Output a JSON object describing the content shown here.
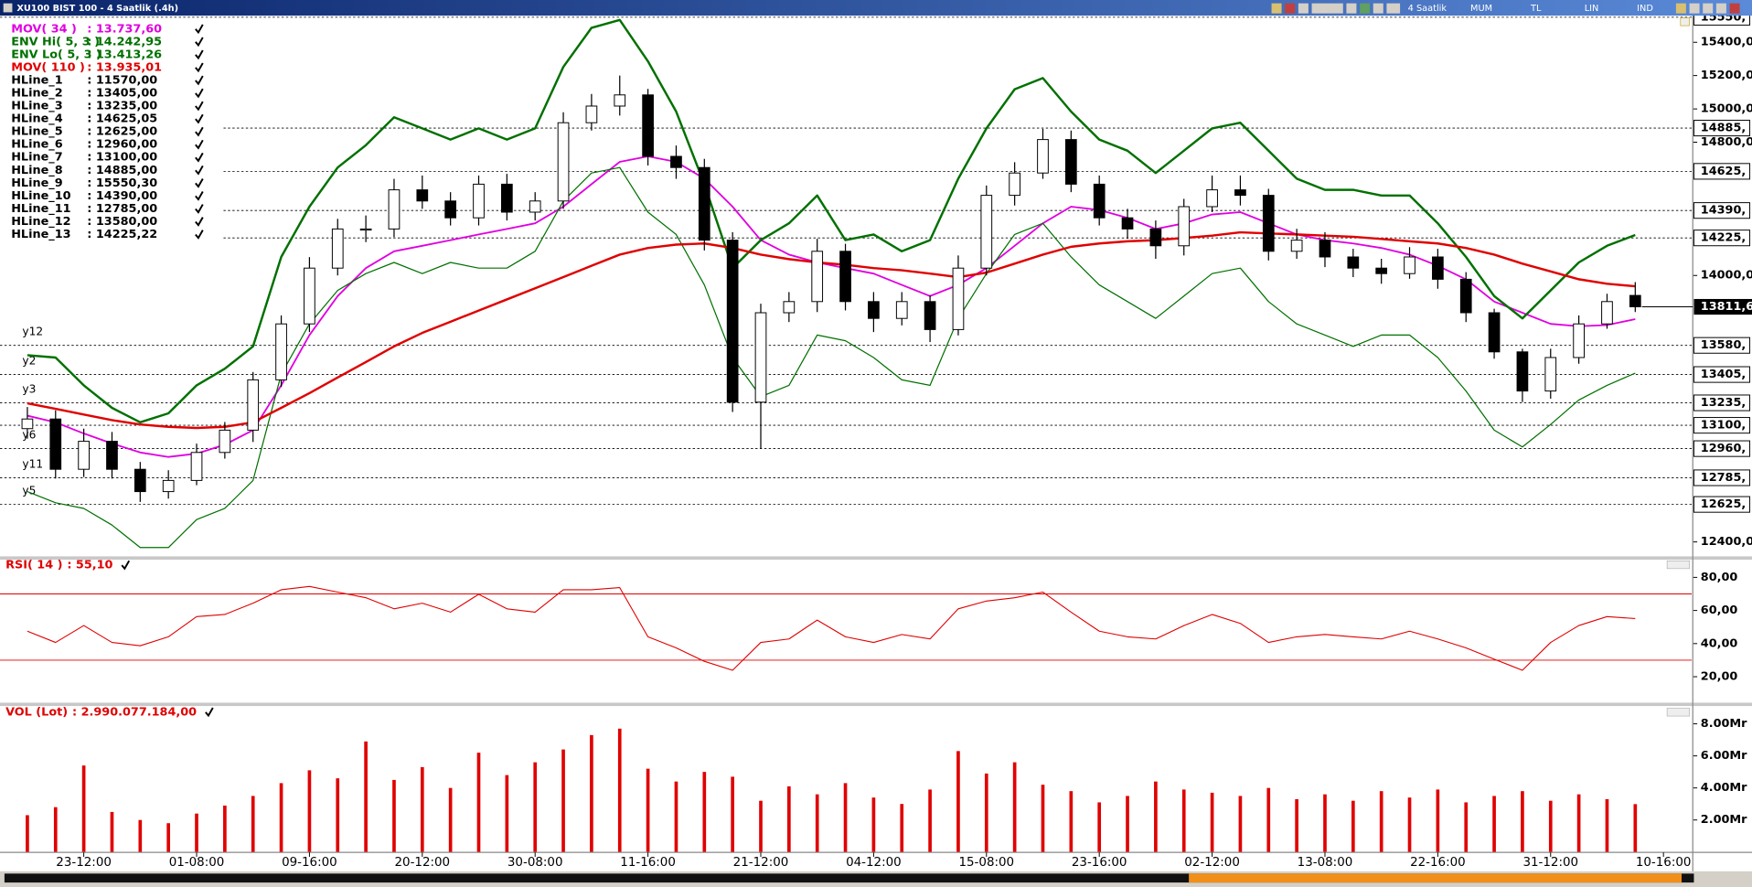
{
  "header": {
    "title": "XU100 BIST 100 - 4 Saatlik (.4h)",
    "toolbar": [
      "4 Saatlik",
      "MUM",
      "TL",
      "LIN",
      "IND"
    ]
  },
  "chart_data": [
    {
      "type": "candlestick",
      "x": [
        0,
        1,
        2,
        3,
        4,
        5,
        6,
        7,
        8,
        9,
        10,
        11,
        12,
        13,
        14,
        15,
        16,
        17,
        18,
        19,
        20,
        21,
        22,
        23,
        24,
        25,
        26,
        27,
        28,
        29,
        30,
        31,
        32,
        33,
        34,
        35,
        36,
        37,
        38,
        39,
        40,
        41,
        42,
        43,
        44,
        45,
        46,
        47,
        48,
        49,
        50,
        51,
        52,
        53,
        54,
        55,
        56,
        57
      ],
      "open": [
        13080,
        13138,
        12836,
        13004,
        12836,
        12702,
        12769,
        12937,
        13071,
        13373,
        13709,
        14044,
        14279,
        14279,
        14514,
        14447,
        14346,
        14548,
        14380,
        14447,
        14917,
        15017,
        15084,
        14715,
        14648,
        14212,
        13239,
        13776,
        13843,
        14145,
        13843,
        13742,
        13843,
        13675,
        14044,
        14481,
        14615,
        14816,
        14548,
        14346,
        14279,
        14178,
        14413,
        14514,
        14481,
        14145,
        14212,
        14111,
        14044,
        14011,
        14111,
        13977,
        13776,
        13541,
        13306,
        13507,
        13709,
        13880
      ],
      "high": [
        13210,
        13190,
        13080,
        13060,
        12880,
        12830,
        12990,
        13120,
        13420,
        13760,
        14110,
        14340,
        14360,
        14580,
        14600,
        14500,
        14600,
        14610,
        14500,
        14980,
        15090,
        15200,
        15120,
        14780,
        14700,
        14260,
        13830,
        13900,
        14220,
        14190,
        13900,
        13900,
        13880,
        14120,
        14540,
        14680,
        14880,
        14870,
        14600,
        14400,
        14330,
        14460,
        14600,
        14600,
        14520,
        14280,
        14260,
        14160,
        14100,
        14170,
        14160,
        14020,
        13800,
        13560,
        13560,
        13760,
        13890,
        13960
      ],
      "low": [
        13020,
        12780,
        12790,
        12780,
        12640,
        12660,
        12740,
        12900,
        13000,
        13330,
        13660,
        14000,
        14200,
        14230,
        14400,
        14300,
        14300,
        14330,
        14330,
        14400,
        14870,
        14960,
        14660,
        14580,
        14150,
        13180,
        12960,
        13720,
        13780,
        13790,
        13660,
        13700,
        13600,
        13640,
        14000,
        14420,
        14580,
        14500,
        14300,
        14220,
        14100,
        14120,
        14380,
        14420,
        14090,
        14100,
        14050,
        13990,
        13950,
        13980,
        13920,
        13720,
        13500,
        13240,
        13260,
        13470,
        13680,
        13780
      ],
      "close": [
        13138,
        12836,
        13004,
        12836,
        12702,
        12769,
        12937,
        13071,
        13373,
        13709,
        14044,
        14279,
        14279,
        14514,
        14447,
        14346,
        14548,
        14380,
        14447,
        14917,
        15017,
        15084,
        14715,
        14648,
        14212,
        13239,
        13776,
        13843,
        14145,
        13843,
        13742,
        13843,
        13675,
        14044,
        14481,
        14615,
        14816,
        14548,
        14346,
        14279,
        14178,
        14413,
        14514,
        14481,
        14145,
        14212,
        14111,
        14044,
        14011,
        14111,
        13977,
        13776,
        13541,
        13306,
        13507,
        13709,
        13843,
        13811.6
      ],
      "up_color": "#ffffff",
      "down_color": "#000000",
      "series": [
        {
          "name": "MOV( 34 )",
          "color": "#e000e0",
          "legend": {
            "value": 13737.6,
            "label": ": 13.737,60"
          },
          "values": [
            13158,
            13118,
            13051,
            12991,
            12937,
            12910,
            12930,
            12984,
            13071,
            13340,
            13642,
            13876,
            14044,
            14145,
            14178,
            14212,
            14246,
            14279,
            14313,
            14413,
            14548,
            14682,
            14715,
            14682,
            14581,
            14413,
            14212,
            14125,
            14078,
            14044,
            14011,
            13943,
            13876,
            13943,
            14044,
            14178,
            14313,
            14413,
            14393,
            14346,
            14279,
            14313,
            14366,
            14380,
            14313,
            14246,
            14212,
            14192,
            14165,
            14125,
            14058,
            13977,
            13843,
            13776,
            13709,
            13695,
            13702,
            13737.6
          ]
        },
        {
          "name": "ENV Hi( 5, 3 )",
          "color": "#007000",
          "legend": {
            "value": 14242.95,
            "label": ": 14.242,95"
          },
          "values": [
            13521,
            13507,
            13340,
            13205,
            13118,
            13172,
            13340,
            13440,
            13574,
            14111,
            14413,
            14648,
            14782,
            14950,
            14883,
            14816,
            14883,
            14816,
            14883,
            15252,
            15487,
            15534,
            15286,
            14984,
            14548,
            14044,
            14212,
            14313,
            14480,
            14212,
            14246,
            14145,
            14212,
            14581,
            14883,
            15118,
            15185,
            14984,
            14816,
            14749,
            14615,
            14749,
            14883,
            14917,
            14749,
            14581,
            14514,
            14514,
            14480,
            14480,
            14313,
            14111,
            13876,
            13742,
            13910,
            14078,
            14178,
            14242.95
          ]
        },
        {
          "name": "ENV Lo( 5, 3 )",
          "color": "#007000",
          "legend": {
            "value": 13413.26,
            "label": ": 13.413,26"
          },
          "values": [
            12702,
            12635,
            12601,
            12501,
            12366,
            12366,
            12534,
            12601,
            12769,
            13407,
            13709,
            13910,
            14011,
            14078,
            14011,
            14078,
            14044,
            14044,
            14145,
            14447,
            14615,
            14648,
            14380,
            14246,
            13943,
            13507,
            13272,
            13340,
            13642,
            13608,
            13507,
            13373,
            13340,
            13742,
            14011,
            14246,
            14313,
            14111,
            13943,
            13843,
            13742,
            13876,
            14011,
            14044,
            13843,
            13709,
            13642,
            13574,
            13642,
            13642,
            13507,
            13306,
            13071,
            12970,
            13105,
            13252,
            13340,
            13413.26
          ]
        },
        {
          "name": "MOV( 110 )",
          "color": "#e00000",
          "legend": {
            "value": 13935.01,
            "label": ": 13.935,01"
          },
          "values": [
            13232,
            13199,
            13165,
            13131,
            13105,
            13091,
            13084,
            13091,
            13118,
            13205,
            13293,
            13387,
            13480,
            13574,
            13655,
            13722,
            13789,
            13856,
            13923,
            13990,
            14058,
            14125,
            14165,
            14185,
            14192,
            14165,
            14125,
            14098,
            14078,
            14064,
            14044,
            14031,
            14011,
            13990,
            14017,
            14071,
            14125,
            14172,
            14192,
            14205,
            14212,
            14225,
            14239,
            14259,
            14252,
            14246,
            14239,
            14232,
            14219,
            14205,
            14192,
            14165,
            14125,
            14071,
            14024,
            13977,
            13950,
            13935.01
          ]
        }
      ],
      "hlines": [
        {
          "name": "HLine_1",
          "value": 11570,
          "legend_label": ": 11570,00"
        },
        {
          "name": "HLine_2",
          "value": 13405,
          "legend_label": ": 13405,00",
          "axis_label": "13405,",
          "tag": "y2"
        },
        {
          "name": "HLine_3",
          "value": 13235,
          "legend_label": ": 13235,00",
          "axis_label": "13235,",
          "tag": "y3"
        },
        {
          "name": "HLine_4",
          "value": 14625.05,
          "legend_label": ": 14625,05",
          "axis_label": "14625,"
        },
        {
          "name": "HLine_5",
          "value": 12625,
          "legend_label": ": 12625,00",
          "axis_label": "12625,",
          "tag": "y5"
        },
        {
          "name": "HLine_6",
          "value": 12960,
          "legend_label": ": 12960,00",
          "axis_label": "12960,",
          "tag": "y6"
        },
        {
          "name": "HLine_7",
          "value": 13100,
          "legend_label": ": 13100,00",
          "axis_label": "13100,"
        },
        {
          "name": "HLine_8",
          "value": 14885,
          "legend_label": ": 14885,00",
          "axis_label": "14885,"
        },
        {
          "name": "HLine_9",
          "value": 15550.3,
          "legend_label": ": 15550,30",
          "axis_label": "15550,"
        },
        {
          "name": "HLine_10",
          "value": 14390,
          "legend_label": ": 14390,00",
          "axis_label": "14390,"
        },
        {
          "name": "HLine_11",
          "value": 12785,
          "legend_label": ": 12785,00",
          "axis_label": "12785,",
          "tag": "y11"
        },
        {
          "name": "HLine_12",
          "value": 13580,
          "legend_label": ": 13580,00",
          "axis_label": "13580,",
          "tag": "y12"
        },
        {
          "name": "HLine_13",
          "value": 14225.22,
          "legend_label": ": 14225,22",
          "axis_label": "14225,"
        }
      ],
      "last_price": {
        "value": 13811.6,
        "label": "13811,6"
      },
      "xlim": [
        -0.97,
        59
      ],
      "ylim": [
        12320,
        15560
      ],
      "yticks": [
        {
          "value": 15400,
          "label": "15400,00"
        },
        {
          "value": 15200,
          "label": "15200,00"
        },
        {
          "value": 15000,
          "label": "15000,00"
        },
        {
          "value": 14800,
          "label": "14800,00"
        },
        {
          "value": 14000,
          "label": "14000,00"
        },
        {
          "value": 12400,
          "label": "12400,00"
        }
      ]
    },
    {
      "type": "line",
      "x": [
        0,
        1,
        2,
        3,
        4,
        5,
        6,
        7,
        8,
        9,
        10,
        11,
        12,
        13,
        14,
        15,
        16,
        17,
        18,
        19,
        20,
        21,
        22,
        23,
        24,
        25,
        26,
        27,
        28,
        29,
        30,
        31,
        32,
        33,
        34,
        35,
        36,
        37,
        38,
        39,
        40,
        41,
        42,
        43,
        44,
        45,
        46,
        47,
        48,
        49,
        50,
        51,
        52,
        53,
        54,
        55,
        56,
        57
      ],
      "series": [
        {
          "name": "RSI( 14 )",
          "color": "#e00000",
          "legend": {
            "value": 55.1,
            "label": ": 55,10"
          },
          "values": [
            47.5,
            40.7,
            50.9,
            40.7,
            38.7,
            44.1,
            56.3,
            57.6,
            64.4,
            72.5,
            74.5,
            71.1,
            67.7,
            61,
            64.4,
            59,
            69.8,
            61,
            59,
            72.5,
            72.5,
            73.8,
            44.1,
            37.4,
            29.3,
            23.9,
            40.7,
            42.8,
            54.2,
            44.1,
            40.7,
            45.5,
            42.8,
            61,
            65.7,
            67.7,
            71.1,
            59,
            47.5,
            44.1,
            42.8,
            50.9,
            57.6,
            52.2,
            40.7,
            44.1,
            45.5,
            44.1,
            42.8,
            47.5,
            42.8,
            37.4,
            30.6,
            23.9,
            40.7,
            50.9,
            56.3,
            55.1
          ]
        }
      ],
      "levels": [
        70,
        30
      ],
      "xlim": [
        -0.97,
        59
      ],
      "ylim": [
        5,
        90
      ],
      "yticks": [
        {
          "value": 80,
          "label": "80,00"
        },
        {
          "value": 60,
          "label": "60,00"
        },
        {
          "value": 40,
          "label": "40,00"
        },
        {
          "value": 20,
          "label": "20,00"
        }
      ]
    },
    {
      "type": "bar",
      "x": [
        0,
        1,
        2,
        3,
        4,
        5,
        6,
        7,
        8,
        9,
        10,
        11,
        12,
        13,
        14,
        15,
        16,
        17,
        18,
        19,
        20,
        21,
        22,
        23,
        24,
        25,
        26,
        27,
        28,
        29,
        30,
        31,
        32,
        33,
        34,
        35,
        36,
        37,
        38,
        39,
        40,
        41,
        42,
        43,
        44,
        45,
        46,
        47,
        48,
        49,
        50,
        51,
        52,
        53,
        54,
        55,
        56,
        57
      ],
      "series": [
        {
          "name": "VOL (Lot)",
          "color": "#e00000",
          "legend": {
            "value": 2.990077184,
            "label": ": 2.990.077.184,00"
          },
          "values": [
            2.3,
            2.8,
            5.4,
            2.5,
            2.0,
            1.8,
            2.4,
            2.9,
            3.5,
            4.3,
            5.1,
            4.6,
            6.9,
            4.5,
            5.3,
            4.0,
            6.2,
            4.8,
            5.6,
            6.4,
            7.3,
            7.7,
            5.2,
            4.4,
            5.0,
            4.7,
            3.2,
            4.1,
            3.6,
            4.3,
            3.4,
            3.0,
            3.9,
            6.3,
            4.9,
            5.6,
            4.2,
            3.8,
            3.1,
            3.5,
            4.4,
            3.9,
            3.7,
            3.5,
            4.0,
            3.3,
            3.6,
            3.2,
            3.8,
            3.4,
            3.9,
            3.1,
            3.5,
            3.8,
            3.2,
            3.6,
            3.3,
            2.99
          ]
        }
      ],
      "xlim": [
        -0.97,
        59
      ],
      "ylim": [
        0,
        9
      ],
      "yticks": [
        {
          "value": 8,
          "label": "8.00Mr"
        },
        {
          "value": 6,
          "label": "6.00Mr"
        },
        {
          "value": 4,
          "label": "4.00Mr"
        },
        {
          "value": 2,
          "label": "2.00Mr"
        }
      ],
      "xticks": [
        {
          "value": 2,
          "label": "23-12:00"
        },
        {
          "value": 6,
          "label": "01-08:00"
        },
        {
          "value": 10,
          "label": "09-16:00"
        },
        {
          "value": 14,
          "label": "20-12:00"
        },
        {
          "value": 18,
          "label": "30-08:00"
        },
        {
          "value": 22,
          "label": "11-16:00"
        },
        {
          "value": 26,
          "label": "21-12:00"
        },
        {
          "value": 30,
          "label": "04-12:00"
        },
        {
          "value": 34,
          "label": "15-08:00"
        },
        {
          "value": 38,
          "label": "23-16:00"
        },
        {
          "value": 42,
          "label": "02-12:00"
        },
        {
          "value": 46,
          "label": "13-08:00"
        },
        {
          "value": 50,
          "label": "22-16:00"
        },
        {
          "value": 54,
          "label": "31-12:00"
        },
        {
          "value": 58,
          "label": "10-16:00"
        }
      ]
    }
  ]
}
